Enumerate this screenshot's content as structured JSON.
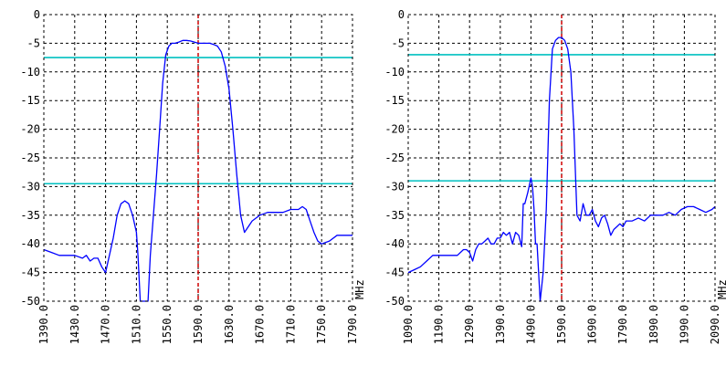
{
  "colors": {
    "background": "#ffffff",
    "grid": "#000000",
    "trace": "#0000ff",
    "threshold": "#00c0c0",
    "marker": "#d00000"
  },
  "chart_data": [
    {
      "type": "line",
      "xlim": [
        1390,
        1790
      ],
      "ylim": [
        -50,
        0
      ],
      "x_ticks": [
        1390,
        1430,
        1470,
        1510,
        1550,
        1590,
        1630,
        1670,
        1710,
        1750,
        1790
      ],
      "x_tick_labels": [
        "1390.0",
        "1430.0",
        "1470.0",
        "1510.0",
        "1550.0",
        "1590.0",
        "1630.0",
        "1670.0",
        "1710.0",
        "1750.0",
        "1790.0"
      ],
      "y_ticks": [
        0,
        -5,
        -10,
        -15,
        -20,
        -25,
        -30,
        -35,
        -40,
        -45,
        -50
      ],
      "y_tick_labels": [
        "0",
        "-5",
        "-10",
        "-15",
        "-20",
        "-25",
        "-30",
        "-35",
        "-40",
        "-45",
        "-50"
      ],
      "x_unit": "MHz",
      "grid": true,
      "horizontal_lines": [
        -7.5,
        -29.5
      ],
      "marker_x": 1590,
      "series": [
        {
          "x": [
            1390,
            1400,
            1410,
            1420,
            1430,
            1440,
            1445,
            1450,
            1455,
            1460,
            1465,
            1470,
            1475,
            1480,
            1485,
            1490,
            1495,
            1500,
            1505,
            1510,
            1512,
            1515,
            1520,
            1525,
            1528,
            1532,
            1536,
            1540,
            1544,
            1548,
            1552,
            1556,
            1560,
            1565,
            1570,
            1575,
            1580,
            1585,
            1590,
            1595,
            1600,
            1605,
            1610,
            1615,
            1620,
            1625,
            1630,
            1635,
            1640,
            1645,
            1650,
            1655,
            1660,
            1665,
            1670,
            1680,
            1690,
            1700,
            1710,
            1720,
            1725,
            1730,
            1735,
            1740,
            1745,
            1750,
            1760,
            1770,
            1780,
            1790
          ],
          "y": [
            -41,
            -41.5,
            -42,
            -42,
            -42,
            -42.5,
            -42,
            -43,
            -42.5,
            -42.5,
            -44,
            -45,
            -42,
            -39,
            -35,
            -33,
            -32.5,
            -33,
            -35,
            -38,
            -42,
            -50,
            -50,
            -50,
            -42,
            -35,
            -28,
            -20,
            -12,
            -7,
            -5.5,
            -5,
            -5,
            -4.8,
            -4.5,
            -4.5,
            -4.6,
            -4.8,
            -5,
            -5,
            -5,
            -5,
            -5.2,
            -5.5,
            -6.5,
            -9,
            -13,
            -20,
            -28,
            -35,
            -38,
            -37,
            -36,
            -35.5,
            -35,
            -34.5,
            -34.5,
            -34.5,
            -34,
            -34,
            -33.5,
            -34,
            -36,
            -38,
            -39.5,
            -40,
            -39.5,
            -38.5,
            -38.5,
            -38.5
          ]
        }
      ]
    },
    {
      "type": "line",
      "xlim": [
        1090,
        2090
      ],
      "ylim": [
        -50,
        0
      ],
      "x_ticks": [
        1090,
        1190,
        1290,
        1390,
        1490,
        1590,
        1690,
        1790,
        1890,
        1990,
        2090
      ],
      "x_tick_labels": [
        "1090.0",
        "1190.0",
        "1290.0",
        "1390.0",
        "1490.0",
        "1590.0",
        "1690.0",
        "1790.0",
        "1890.0",
        "1990.0",
        "2090.0"
      ],
      "y_ticks": [
        0,
        -5,
        -10,
        -15,
        -20,
        -25,
        -30,
        -35,
        -40,
        -45,
        -50
      ],
      "y_tick_labels": [
        "0",
        "-5",
        "-10",
        "-15",
        "-20",
        "-25",
        "-30",
        "-35",
        "-40",
        "-45",
        "-50"
      ],
      "x_unit": "MHz",
      "grid": true,
      "horizontal_lines": [
        -7,
        -29
      ],
      "marker_x": 1590,
      "series": [
        {
          "x": [
            1090,
            1110,
            1130,
            1150,
            1170,
            1190,
            1210,
            1230,
            1250,
            1270,
            1280,
            1290,
            1300,
            1310,
            1320,
            1330,
            1340,
            1350,
            1360,
            1370,
            1380,
            1390,
            1400,
            1410,
            1420,
            1430,
            1440,
            1450,
            1460,
            1465,
            1470,
            1480,
            1490,
            1495,
            1500,
            1505,
            1510,
            1520,
            1530,
            1540,
            1550,
            1560,
            1570,
            1580,
            1590,
            1600,
            1610,
            1620,
            1630,
            1640,
            1650,
            1660,
            1670,
            1680,
            1690,
            1700,
            1710,
            1720,
            1730,
            1740,
            1750,
            1760,
            1770,
            1780,
            1790,
            1800,
            1820,
            1840,
            1860,
            1880,
            1900,
            1920,
            1940,
            1960,
            1980,
            2000,
            2020,
            2040,
            2060,
            2080,
            2090
          ],
          "y": [
            -45,
            -44.5,
            -44,
            -43,
            -42,
            -42,
            -42,
            -42,
            -42,
            -41,
            -41,
            -41.5,
            -43,
            -41,
            -40,
            -40,
            -39.5,
            -39,
            -40,
            -40,
            -39,
            -39,
            -38,
            -38.5,
            -38,
            -40,
            -38,
            -38.5,
            -40.5,
            -33,
            -33,
            -31,
            -28.5,
            -30,
            -34,
            -40,
            -40,
            -50,
            -45,
            -34,
            -15,
            -6,
            -4.5,
            -4,
            -4,
            -4.5,
            -6,
            -10,
            -20,
            -35,
            -36,
            -33,
            -35,
            -35,
            -34,
            -36,
            -37,
            -35.5,
            -35,
            -36.5,
            -38.5,
            -37.5,
            -37,
            -36.5,
            -37,
            -36,
            -36,
            -35.5,
            -36,
            -35,
            -35,
            -35,
            -34.5,
            -35,
            -34,
            -33.5,
            -33.5,
            -34,
            -34.5,
            -34,
            -33.5
          ]
        }
      ]
    }
  ]
}
